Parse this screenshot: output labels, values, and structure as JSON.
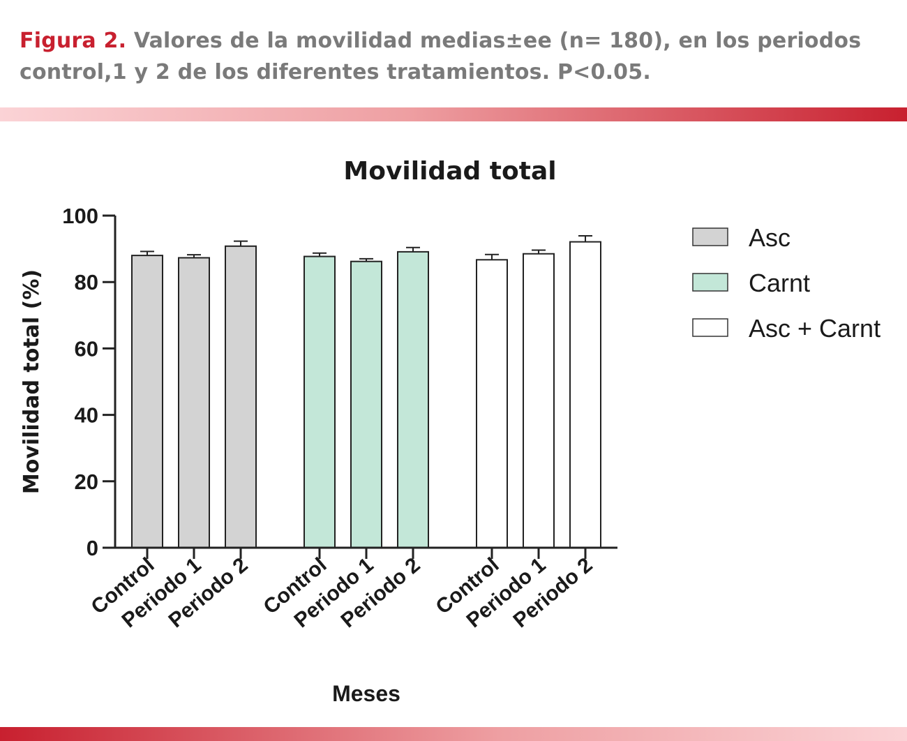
{
  "caption": {
    "label": "Figura 2.",
    "text": " Valores de la movilidad medias±ee (n= 180), en los periodos control,1 y 2 de los diferentes tratamientos. P<0.05."
  },
  "chart_data": {
    "type": "bar",
    "title": "Movilidad total",
    "xlabel": "Meses",
    "ylabel": "Movilidad total (%)",
    "ylim": [
      0,
      100
    ],
    "yticks": [
      0,
      20,
      40,
      60,
      80,
      100
    ],
    "categories": [
      "Control",
      "Periodo 1",
      "Periodo 2"
    ],
    "grid": false,
    "legend_position": "right",
    "series": [
      {
        "name": "Asc",
        "color": "#d3d3d3",
        "values": [
          88,
          87.3,
          90.8
        ],
        "errors": [
          1.2,
          0.9,
          1.5
        ]
      },
      {
        "name": "Carnt",
        "color": "#c3e7d8",
        "values": [
          87.7,
          86.2,
          89.1
        ],
        "errors": [
          1.0,
          0.8,
          1.3
        ]
      },
      {
        "name": "Asc + Carnt",
        "color": "#ffffff",
        "values": [
          86.7,
          88.5,
          92.1
        ],
        "errors": [
          1.6,
          1.1,
          1.8
        ]
      }
    ]
  }
}
